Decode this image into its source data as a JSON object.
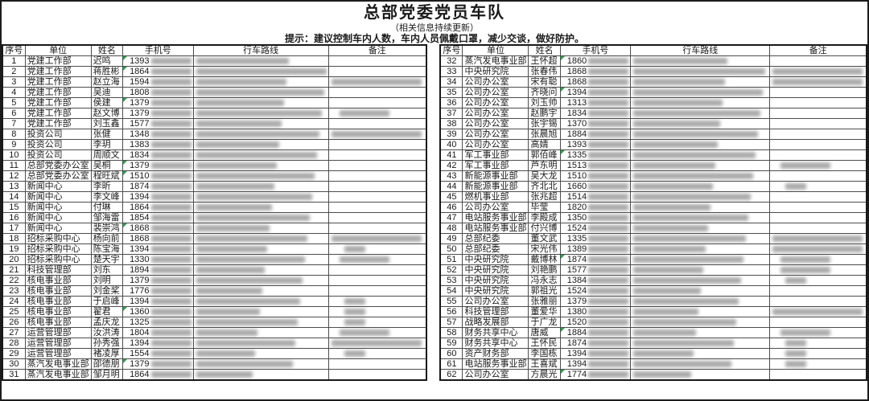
{
  "page": {
    "title": "总部党委党员车队",
    "subtitle": "（相关信息持续更新）",
    "tip": "提示：建议控制车内人数，车内人员佩戴口罩，减少交谈，做好防护。"
  },
  "columns": [
    "序号",
    "单位",
    "姓名",
    "手机号",
    "行车路线",
    "备注"
  ],
  "colors": {
    "flag_green": "#2e9e4f",
    "grid_line": "#4d4d4d",
    "outer_border": "#1c1c1c",
    "redaction_gray": "#8d8d8d"
  },
  "redaction_note": "phone suffixes, routes and notes are blurred/unreadable in source",
  "rows_left": [
    {
      "no": "1",
      "unit": "党建工作部",
      "name": "迟鸣",
      "phone_prefix": "1393",
      "flag": true,
      "note": ""
    },
    {
      "no": "2",
      "unit": "党建工作部",
      "name": "蒋胜彬",
      "phone_prefix": "1864",
      "flag": true,
      "note": ""
    },
    {
      "no": "3",
      "unit": "党建工作部",
      "name": "赵立海",
      "phone_prefix": "1594",
      "flag": false,
      "note": "l"
    },
    {
      "no": "4",
      "unit": "党建工作部",
      "name": "吴迪",
      "phone_prefix": "1808",
      "flag": false,
      "note": ""
    },
    {
      "no": "5",
      "unit": "党建工作部",
      "name": "侯建",
      "phone_prefix": "1379",
      "flag": true,
      "note": ""
    },
    {
      "no": "6",
      "unit": "党建工作部",
      "name": "赵文博",
      "phone_prefix": "1379",
      "flag": false,
      "note": "m"
    },
    {
      "no": "7",
      "unit": "党建工作部",
      "name": "刘玉鑫",
      "phone_prefix": "1577",
      "flag": false,
      "note": ""
    },
    {
      "no": "8",
      "unit": "投资公司",
      "name": "张健",
      "phone_prefix": "1348",
      "flag": false,
      "note": "l"
    },
    {
      "no": "9",
      "unit": "投资公司",
      "name": "李玥",
      "phone_prefix": "1383",
      "flag": false,
      "note": ""
    },
    {
      "no": "10",
      "unit": "投资公司",
      "name": "周顺文",
      "phone_prefix": "1834",
      "flag": false,
      "note": ""
    },
    {
      "no": "11",
      "unit": "总部党委办公室",
      "name": "吴桐",
      "phone_prefix": "1379",
      "flag": true,
      "note": ""
    },
    {
      "no": "12",
      "unit": "总部党委办公室",
      "name": "程旺斌",
      "phone_prefix": "1510",
      "flag": true,
      "note": ""
    },
    {
      "no": "13",
      "unit": "新闻中心",
      "name": "李昕",
      "phone_prefix": "1874",
      "flag": false,
      "note": ""
    },
    {
      "no": "14",
      "unit": "新闻中心",
      "name": "李文峰",
      "phone_prefix": "1394",
      "flag": false,
      "note": ""
    },
    {
      "no": "15",
      "unit": "新闻中心",
      "name": "付琳",
      "phone_prefix": "1864",
      "flag": false,
      "note": ""
    },
    {
      "no": "16",
      "unit": "新闻中心",
      "name": "邹海雷",
      "phone_prefix": "1854",
      "flag": false,
      "note": ""
    },
    {
      "no": "17",
      "unit": "新闻中心",
      "name": "裴崇鸿",
      "phone_prefix": "1868",
      "flag": true,
      "note": ""
    },
    {
      "no": "18",
      "unit": "招标采购中心",
      "name": "杨向前",
      "phone_prefix": "1868",
      "flag": false,
      "note": "l"
    },
    {
      "no": "19",
      "unit": "招标采购中心",
      "name": "陈宝海",
      "phone_prefix": "1394",
      "flag": false,
      "note": "s"
    },
    {
      "no": "20",
      "unit": "招标采购中心",
      "name": "楚天宇",
      "phone_prefix": "1330",
      "flag": false,
      "note": "m"
    },
    {
      "no": "21",
      "unit": "科技管理部",
      "name": "刘东",
      "phone_prefix": "1894",
      "flag": false,
      "note": ""
    },
    {
      "no": "22",
      "unit": "核电事业部",
      "name": "刘明",
      "phone_prefix": "1379",
      "flag": false,
      "note": ""
    },
    {
      "no": "23",
      "unit": "核电事业部",
      "name": "刘金桨",
      "phone_prefix": "1776",
      "flag": false,
      "note": ""
    },
    {
      "no": "24",
      "unit": "核电事业部",
      "name": "于启峰",
      "phone_prefix": "1394",
      "flag": false,
      "note": "s"
    },
    {
      "no": "25",
      "unit": "核电事业部",
      "name": "翟君",
      "phone_prefix": "1360",
      "flag": true,
      "note": "s"
    },
    {
      "no": "26",
      "unit": "核电事业部",
      "name": "孟庆龙",
      "phone_prefix": "1325",
      "flag": false,
      "note": "s"
    },
    {
      "no": "27",
      "unit": "运营管理部",
      "name": "汝洪涛",
      "phone_prefix": "1804",
      "flag": false,
      "note": "m"
    },
    {
      "no": "28",
      "unit": "运营管理部",
      "name": "孙秀强",
      "phone_prefix": "1394",
      "flag": false,
      "note": "l"
    },
    {
      "no": "29",
      "unit": "运营管理部",
      "name": "褚凌厚",
      "phone_prefix": "1554",
      "flag": false,
      "note": "s"
    },
    {
      "no": "30",
      "unit": "蒸汽发电事业部",
      "name": "邵德朋",
      "phone_prefix": "1379",
      "flag": true,
      "note": ""
    },
    {
      "no": "31",
      "unit": "蒸汽发电事业部",
      "name": "邹月明",
      "phone_prefix": "1864",
      "flag": false,
      "note": ""
    }
  ],
  "rows_right": [
    {
      "no": "32",
      "unit": "蒸汽发电事业部",
      "name": "王怀超",
      "phone_prefix": "1860",
      "flag": true,
      "note": ""
    },
    {
      "no": "33",
      "unit": "中央研究院",
      "name": "张春伟",
      "phone_prefix": "1868",
      "flag": false,
      "note": "l"
    },
    {
      "no": "34",
      "unit": "公司办公室",
      "name": "宋有聪",
      "phone_prefix": "1868",
      "flag": false,
      "note": "l"
    },
    {
      "no": "35",
      "unit": "公司办公室",
      "name": "齐晓问",
      "phone_prefix": "1394",
      "flag": true,
      "note": ""
    },
    {
      "no": "36",
      "unit": "公司办公室",
      "name": "刘玉帅",
      "phone_prefix": "1313",
      "flag": false,
      "note": ""
    },
    {
      "no": "37",
      "unit": "公司办公室",
      "name": "赵鹏宇",
      "phone_prefix": "1834",
      "flag": false,
      "note": ""
    },
    {
      "no": "38",
      "unit": "公司办公室",
      "name": "张宇锡",
      "phone_prefix": "1370",
      "flag": false,
      "note": ""
    },
    {
      "no": "39",
      "unit": "公司办公室",
      "name": "张晨旭",
      "phone_prefix": "1884",
      "flag": false,
      "note": ""
    },
    {
      "no": "40",
      "unit": "公司办公室",
      "name": "高婧",
      "phone_prefix": "1393",
      "flag": false,
      "note": ""
    },
    {
      "no": "41",
      "unit": "军工事业部",
      "name": "郭佰峰",
      "phone_prefix": "1335",
      "flag": true,
      "note": ""
    },
    {
      "no": "42",
      "unit": "军工事业部",
      "name": "芦东明",
      "phone_prefix": "1513",
      "flag": false,
      "note": "m"
    },
    {
      "no": "43",
      "unit": "新能源事业部",
      "name": "吴大龙",
      "phone_prefix": "1510",
      "flag": false,
      "note": ""
    },
    {
      "no": "44",
      "unit": "新能源事业部",
      "name": "齐北北",
      "phone_prefix": "1660",
      "flag": false,
      "note": "s"
    },
    {
      "no": "45",
      "unit": "燃机事业部",
      "name": "张兆超",
      "phone_prefix": "1514",
      "flag": false,
      "note": ""
    },
    {
      "no": "46",
      "unit": "公司办公室",
      "name": "毕莹",
      "phone_prefix": "1820",
      "flag": false,
      "note": ""
    },
    {
      "no": "47",
      "unit": "电站服务事业部",
      "name": "李殿成",
      "phone_prefix": "1350",
      "flag": false,
      "note": ""
    },
    {
      "no": "48",
      "unit": "电站服务事业部",
      "name": "付兴博",
      "phone_prefix": "1524",
      "flag": false,
      "note": ""
    },
    {
      "no": "49",
      "unit": "总部纪委",
      "name": "董文武",
      "phone_prefix": "1335",
      "flag": false,
      "note": "l"
    },
    {
      "no": "50",
      "unit": "总部纪委",
      "name": "宋光伟",
      "phone_prefix": "1389",
      "flag": false,
      "note": "l"
    },
    {
      "no": "51",
      "unit": "中央研究院",
      "name": "戴博林",
      "phone_prefix": "1874",
      "flag": true,
      "note": "m"
    },
    {
      "no": "52",
      "unit": "中央研究院",
      "name": "刘艳鹏",
      "phone_prefix": "1577",
      "flag": false,
      "note": "m"
    },
    {
      "no": "53",
      "unit": "中央研究院",
      "name": "冯永志",
      "phone_prefix": "1384",
      "flag": false,
      "note": "s"
    },
    {
      "no": "54",
      "unit": "中央研究院",
      "name": "郭祖光",
      "phone_prefix": "1524",
      "flag": false,
      "note": ""
    },
    {
      "no": "55",
      "unit": "公司办公室",
      "name": "张雅丽",
      "phone_prefix": "1379",
      "flag": false,
      "note": ""
    },
    {
      "no": "56",
      "unit": "科技管理部",
      "name": "董爱华",
      "phone_prefix": "1380",
      "flag": false,
      "note": "l"
    },
    {
      "no": "57",
      "unit": "战略发展部",
      "name": "于广龙",
      "phone_prefix": "1520",
      "flag": false,
      "note": ""
    },
    {
      "no": "58",
      "unit": "财务共享中心",
      "name": "唐威",
      "phone_prefix": "1884",
      "flag": true,
      "note": "m"
    },
    {
      "no": "59",
      "unit": "财务共享中心",
      "name": "王怀民",
      "phone_prefix": "1874",
      "flag": false,
      "note": "s"
    },
    {
      "no": "60",
      "unit": "资产财务部",
      "name": "李国栋",
      "phone_prefix": "1394",
      "flag": false,
      "note": "s"
    },
    {
      "no": "61",
      "unit": "电站服务事业部",
      "name": "王喜斌",
      "phone_prefix": "1394",
      "flag": false,
      "note": "s"
    },
    {
      "no": "62",
      "unit": "公司办公室",
      "name": "方晨光",
      "phone_prefix": "1774",
      "flag": true,
      "note": ""
    }
  ]
}
